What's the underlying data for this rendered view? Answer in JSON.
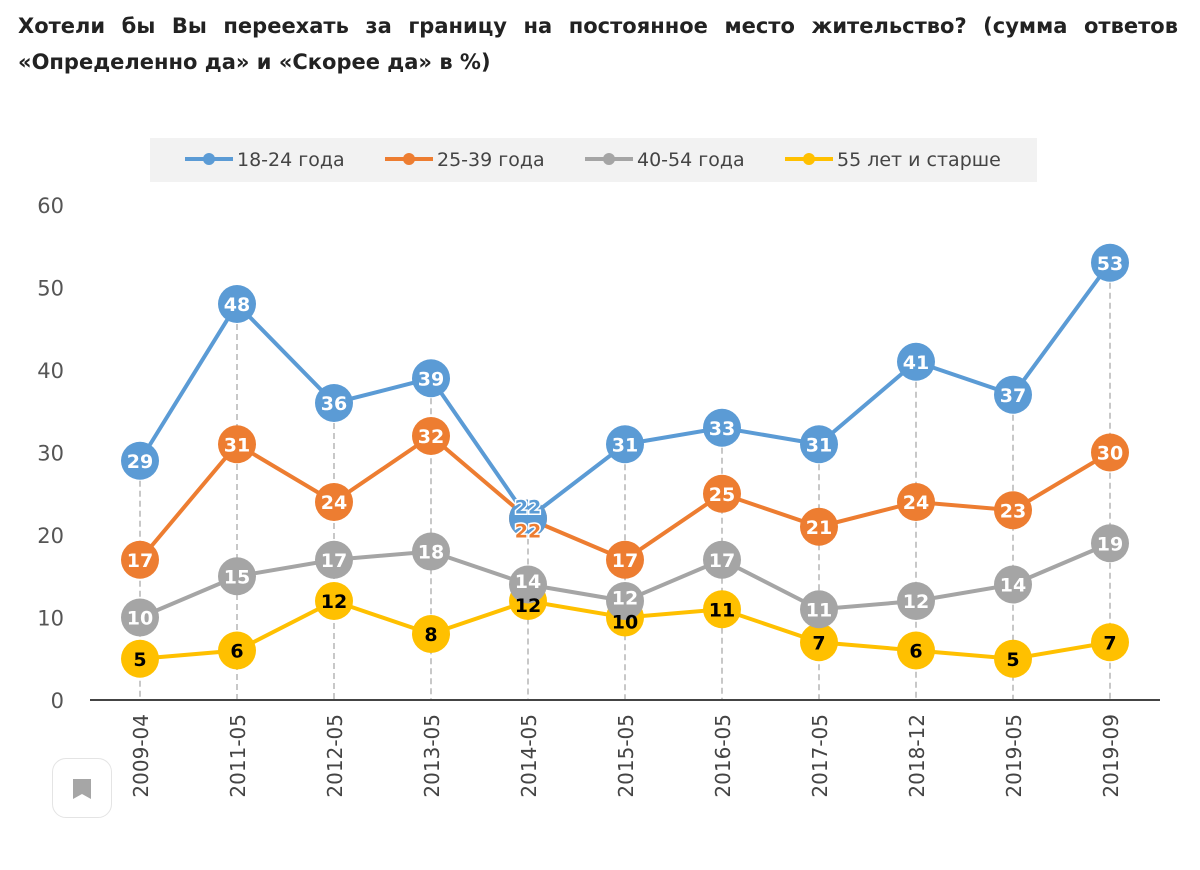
{
  "chart_data": {
    "type": "line",
    "title": "Хотели бы Вы переехать за границу на постоянное место жительство? (сумма ответов «Определенно да» и «Скорее да» в %)",
    "categories": [
      "2009-04",
      "2011-05",
      "2012-05",
      "2013-05",
      "2014-05",
      "2015-05",
      "2016-05",
      "2017-05",
      "2018-12",
      "2019-05",
      "2019-09"
    ],
    "ylim": [
      0,
      60
    ],
    "yticks": [
      0,
      10,
      20,
      30,
      40,
      50,
      60
    ],
    "grid": "vertical dashed drop lines",
    "legend": "top",
    "series": [
      {
        "name": "18-24 года",
        "color": "#5B9BD5",
        "label_color": "#ffffff",
        "values": [
          29,
          48,
          36,
          39,
          22,
          31,
          33,
          31,
          41,
          37,
          53
        ]
      },
      {
        "name": "25-39 года",
        "color": "#ED7D31",
        "label_color": "#ffffff",
        "values": [
          17,
          31,
          24,
          32,
          22,
          17,
          25,
          21,
          24,
          23,
          30
        ]
      },
      {
        "name": "40-54 года",
        "color": "#A5A5A5",
        "label_color": "#ffffff",
        "values": [
          10,
          15,
          17,
          18,
          14,
          12,
          17,
          11,
          12,
          14,
          19
        ]
      },
      {
        "name": "55 лет и старше",
        "color": "#FFC000",
        "label_color": "#000000",
        "values": [
          5,
          6,
          12,
          8,
          12,
          10,
          11,
          7,
          6,
          5,
          7
        ]
      }
    ]
  },
  "icons": {
    "bookmark": "bookmark-icon"
  }
}
